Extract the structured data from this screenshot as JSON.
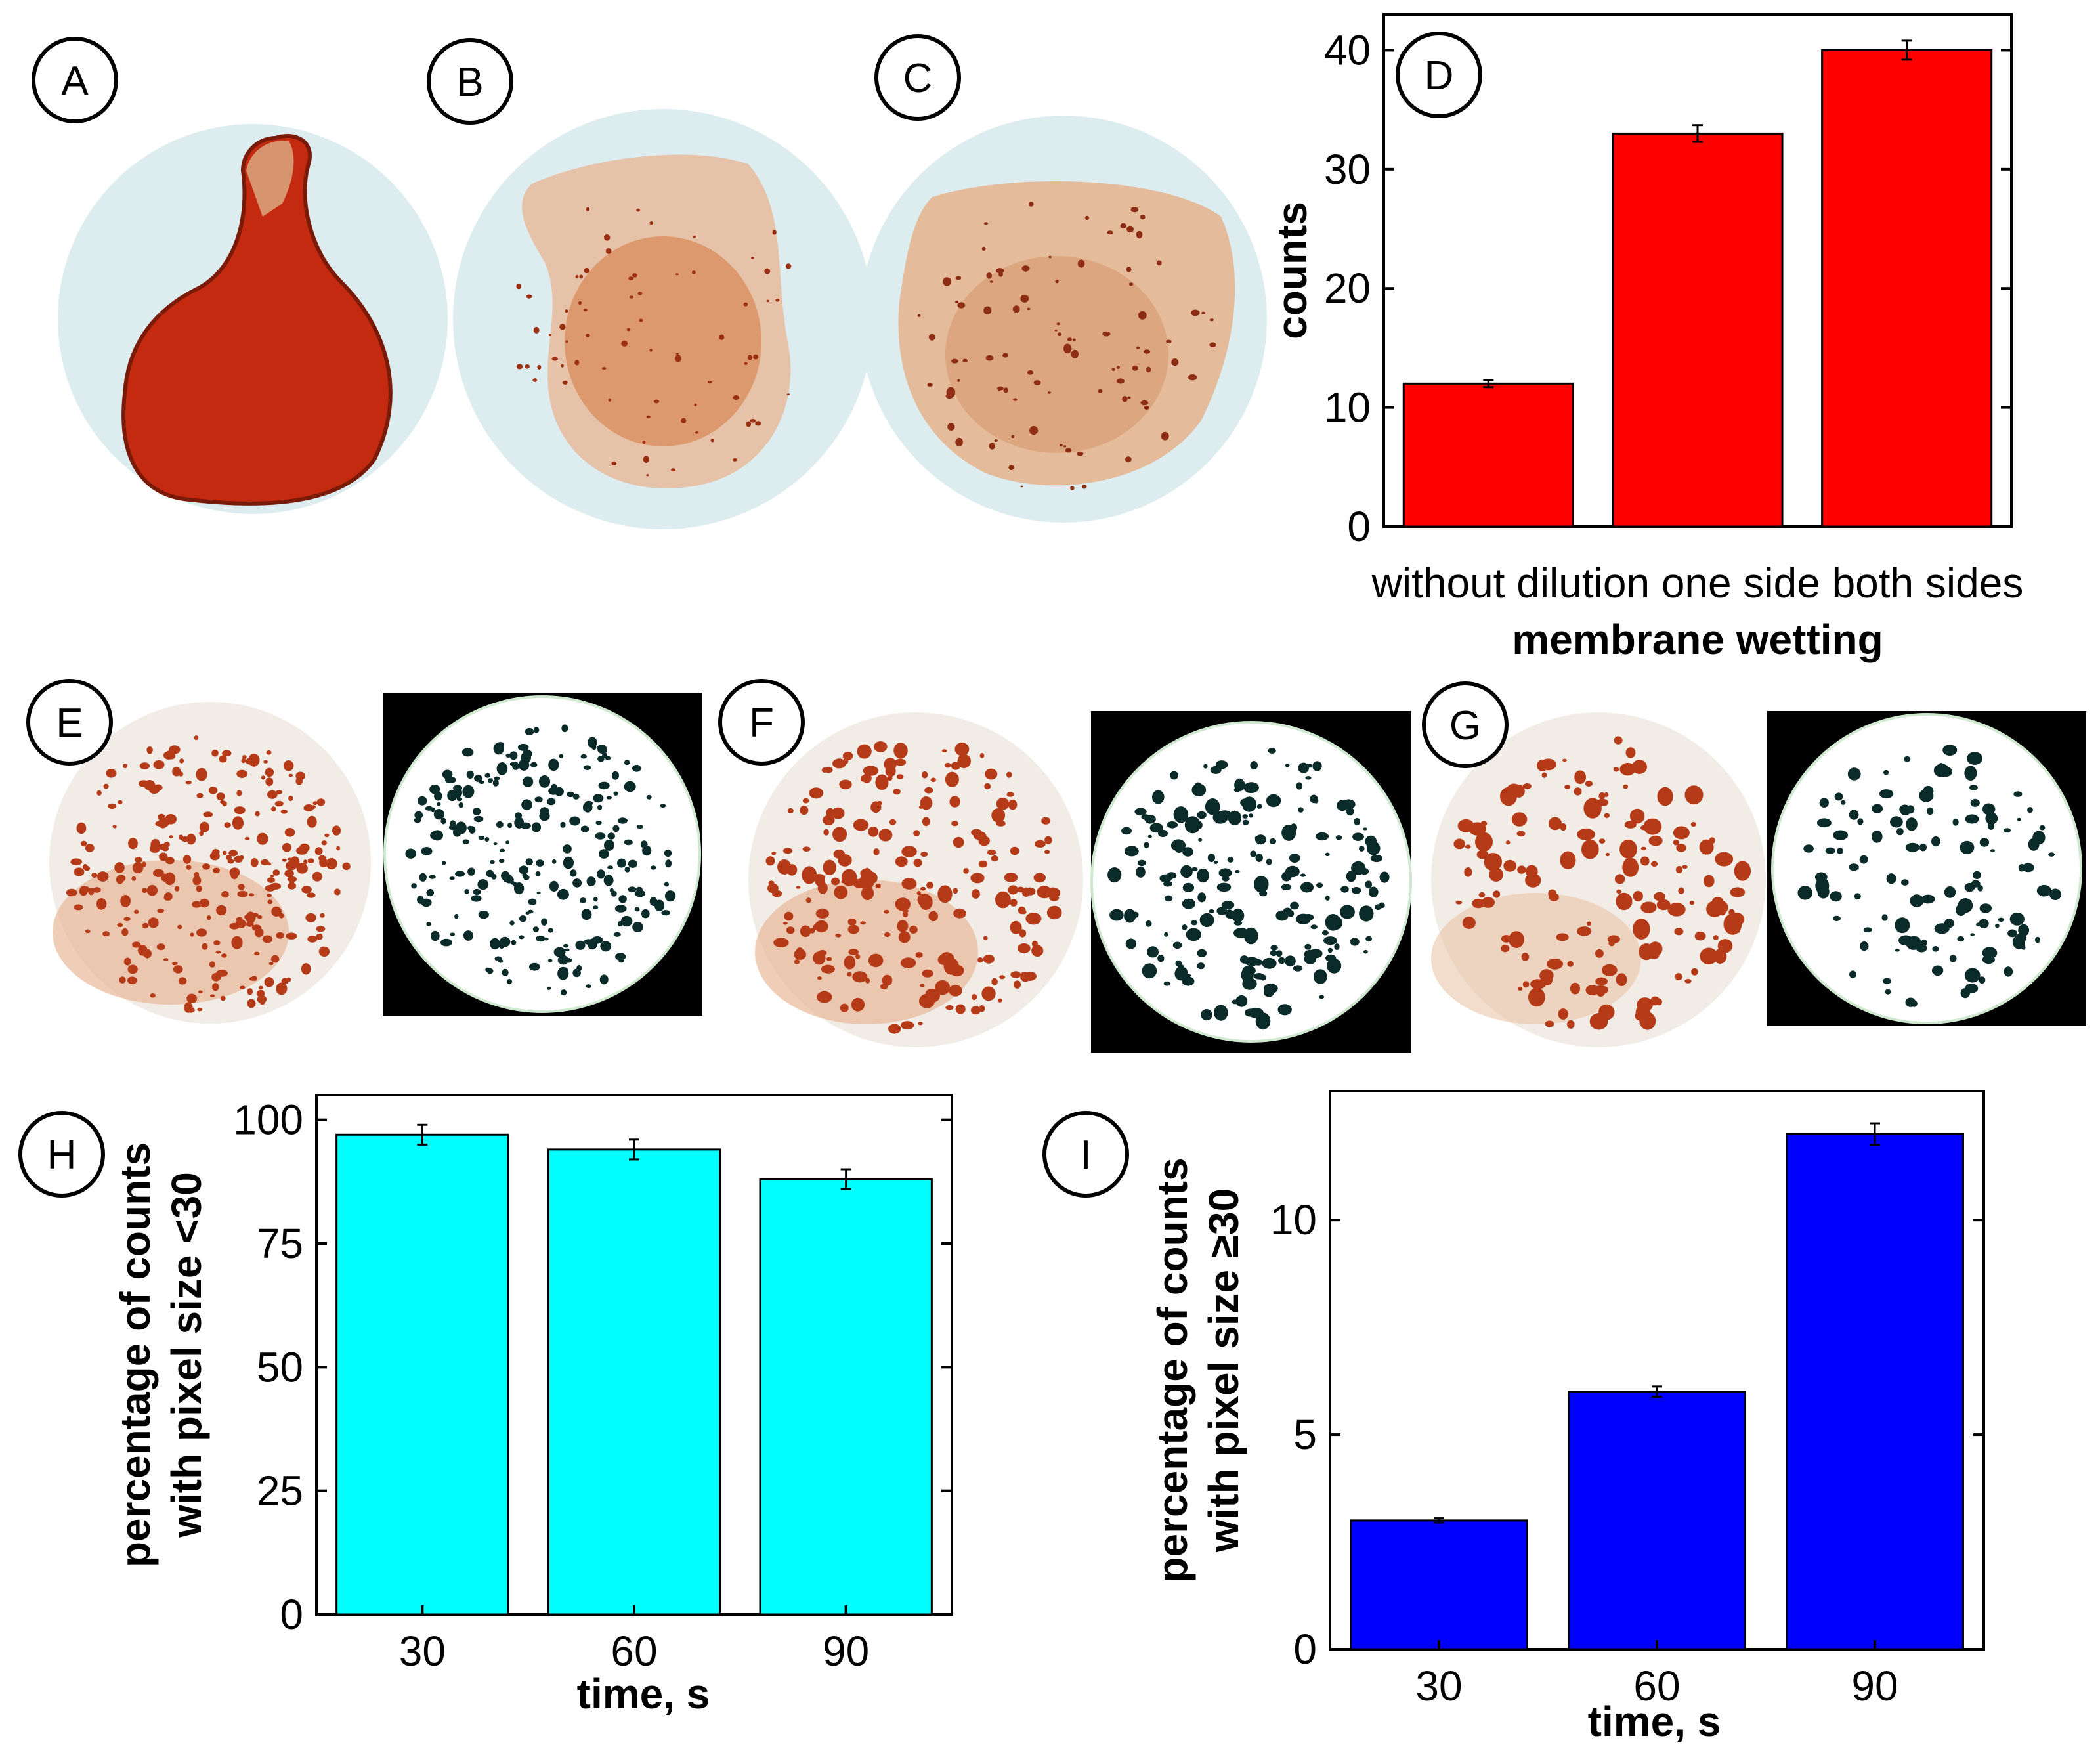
{
  "panel_labels": [
    "A",
    "B",
    "C",
    "D",
    "E",
    "F",
    "G",
    "H",
    "I"
  ],
  "colors": {
    "red_bar": "#ff0000",
    "cyan_bar": "#00ffff",
    "blue_bar": "#0000ff",
    "stain_dark": "#c0290f",
    "stain_mid": "#d9865a",
    "stain_light": "#e8b899",
    "membrane_bg": "#dcecef",
    "binary_spot": "#0b2b2b"
  },
  "chart_data": [
    {
      "panel": "D",
      "type": "bar",
      "categories": [
        "without dilution",
        "one side",
        "both sides"
      ],
      "category_text": "without  dilution    one  side  both  sides",
      "values": [
        12,
        33,
        40
      ],
      "errors": [
        0.3,
        0.7,
        0.8
      ],
      "ylim": [
        0,
        43
      ],
      "yticks": [
        0,
        10,
        20,
        30,
        40
      ],
      "ylabel": "counts",
      "xlabel": "membrane  wetting",
      "color": "#ff0000"
    },
    {
      "panel": "H",
      "type": "bar",
      "categories": [
        "30",
        "60",
        "90"
      ],
      "values": [
        97,
        94,
        88
      ],
      "errors": [
        2,
        2,
        2
      ],
      "ylim": [
        0,
        105
      ],
      "yticks": [
        0,
        25,
        50,
        75,
        100
      ],
      "ylabel_line1": "percentage  of  counts",
      "ylabel_line2": "with  pixel  size  <30",
      "xlabel": "time,  s",
      "color": "#00ffff"
    },
    {
      "panel": "I",
      "type": "bar",
      "categories": [
        "30",
        "60",
        "90"
      ],
      "values": [
        3,
        6,
        12
      ],
      "errors": [
        0.05,
        0.12,
        0.25
      ],
      "ylim": [
        0,
        13
      ],
      "yticks": [
        0,
        5,
        10
      ],
      "ylabel_line1": "percentage  of  counts",
      "ylabel_line2": "with  pixel  size  ≥30",
      "xlabel": "time,  s",
      "color": "#0000ff"
    }
  ]
}
